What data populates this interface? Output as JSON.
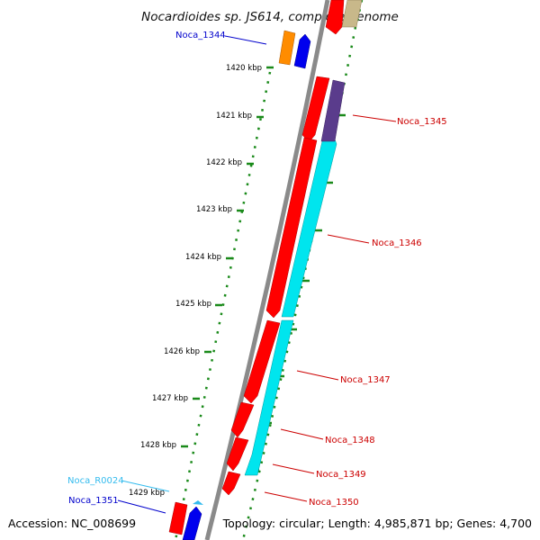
{
  "title": "Nocardioides sp. JS614, complete genome",
  "footer": {
    "accession": "Accession: NC_008699",
    "summary": "Topology: circular; Length: 4,985,871 bp; Genes: 4,700"
  },
  "kbp_ticks": [
    "1420 kbp",
    "1421 kbp",
    "1422 kbp",
    "1423 kbp",
    "1424 kbp",
    "1425 kbp",
    "1426 kbp",
    "1427 kbp",
    "1428 kbp",
    "1429 kbp"
  ],
  "gene_labels": [
    {
      "id": "noca-1344",
      "text": "Noca_1344",
      "color": "#0000cc"
    },
    {
      "id": "noca-1345",
      "text": "Noca_1345",
      "color": "#cc0000"
    },
    {
      "id": "noca-1346",
      "text": "Noca_1346",
      "color": "#cc0000"
    },
    {
      "id": "noca-1347",
      "text": "Noca_1347",
      "color": "#cc0000"
    },
    {
      "id": "noca-1348",
      "text": "Noca_1348",
      "color": "#cc0000"
    },
    {
      "id": "noca-1349",
      "text": "Noca_1349",
      "color": "#cc0000"
    },
    {
      "id": "noca-1350",
      "text": "Noca_1350",
      "color": "#cc0000"
    },
    {
      "id": "noca-r0024",
      "text": "Noca_R0024",
      "color": "#33bbee"
    },
    {
      "id": "noca-1351",
      "text": "Noca_1351",
      "color": "#0000cc"
    }
  ],
  "colors": {
    "backbone": "#8a8a8a",
    "scale_dots": "#1a8a1a",
    "forward_gene": "#ff0000",
    "reverse_gene": "#00e5ee",
    "blue_gene": "#0000ee",
    "orange_gene": "#ff8c00",
    "purple_gene": "#5a3c8c",
    "rna_gene": "#33bbee",
    "khaki_gene": "#c8b88a"
  }
}
